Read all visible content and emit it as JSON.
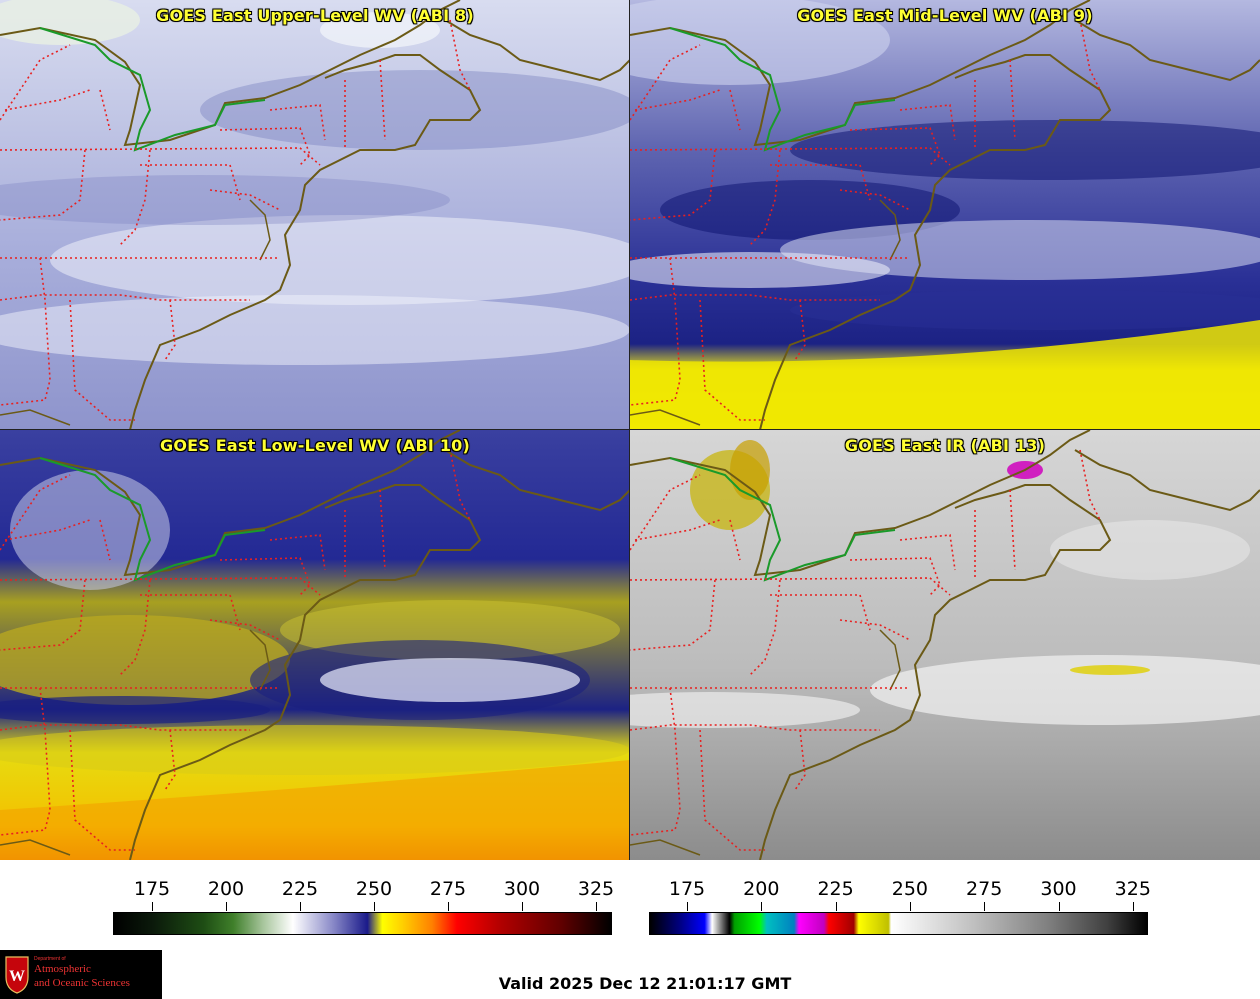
{
  "panels": [
    {
      "title": "GOES East Upper-Level WV (ABI 8)"
    },
    {
      "title": "GOES East Mid-Level WV (ABI 9)"
    },
    {
      "title": "GOES East Low-Level WV (ABI 10)"
    },
    {
      "title": "GOES East IR (ABI 13)"
    }
  ],
  "colorbar_wv": {
    "ticks": [
      "175",
      "200",
      "225",
      "250",
      "275",
      "300",
      "325"
    ]
  },
  "colorbar_ir": {
    "ticks": [
      "175",
      "200",
      "225",
      "250",
      "275",
      "300",
      "325"
    ]
  },
  "logo": {
    "dept": "Department of",
    "line1": "Atmospheric",
    "line2": "and Oceanic Sciences",
    "crest_letter": "W"
  },
  "valid_time": "Valid 2025 Dec 12 21:01:17 GMT",
  "colors": {
    "state_borders": "#e82020",
    "coastline": "#6b5a16",
    "lake_border": "#1a9a2a",
    "title_text": "#ffff33"
  }
}
